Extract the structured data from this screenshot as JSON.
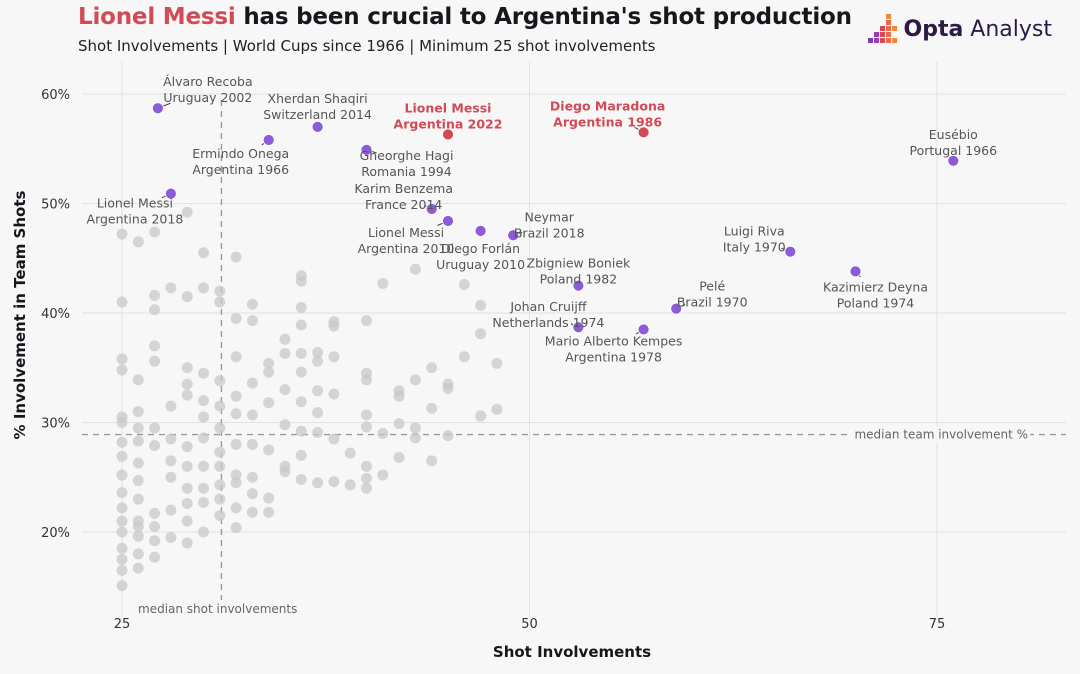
{
  "header": {
    "title_highlight": "Lionel Messi",
    "title_rest": " has been crucial to Argentina's shot production",
    "subtitle": "Shot Involvements | World Cups since 1966 | Minimum 25 shot involvements"
  },
  "brand": {
    "name_bold": "Opta",
    "name_rest": " Analyst"
  },
  "colors": {
    "highlight": "#d24a55",
    "labelled": "#8c5cd8",
    "background_points": "#c8c8c8",
    "brand": "#2b1a44"
  },
  "chart_data": {
    "type": "scatter",
    "xlabel": "Shot Involvements",
    "ylabel": "% Involvement in Team Shots",
    "xlim": [
      25,
      83
    ],
    "ylim": [
      13.5,
      63
    ],
    "xticks": [
      25,
      50,
      75
    ],
    "yticks": [
      20,
      30,
      40,
      50,
      60
    ],
    "ytick_labels": [
      "20%",
      "30%",
      "40%",
      "50%",
      "60%"
    ],
    "grid": true,
    "reference_lines": [
      {
        "axis": "y",
        "value": 28.9,
        "label": "median team involvement %"
      },
      {
        "axis": "x",
        "value": 31.1,
        "label": "median shot involvements"
      }
    ],
    "labelled_points": [
      {
        "name": "Álvaro Recoba",
        "team": "Uruguay 2002",
        "x": 27.2,
        "y": 58.7,
        "highlight": false
      },
      {
        "name": "Xherdan Shaqiri",
        "team": "Switzerland 2014",
        "x": 37.0,
        "y": 57.0,
        "highlight": false
      },
      {
        "name": "Lionel Messi",
        "team": "Argentina 2022",
        "x": 45.0,
        "y": 56.3,
        "highlight": true
      },
      {
        "name": "Diego Maradona",
        "team": "Argentina 1986",
        "x": 57.0,
        "y": 56.5,
        "highlight": true
      },
      {
        "name": "Ermindo Onega",
        "team": "Argentina 1966",
        "x": 34.0,
        "y": 55.8,
        "highlight": false
      },
      {
        "name": "Gheorghe Hagi",
        "team": "Romania 1994",
        "x": 40.0,
        "y": 54.9,
        "highlight": false
      },
      {
        "name": "Eusébio",
        "team": "Portugal 1966",
        "x": 76.0,
        "y": 53.9,
        "highlight": false
      },
      {
        "name": "Lionel Messi",
        "team": "Argentina 2018",
        "x": 28.0,
        "y": 50.9,
        "highlight": false
      },
      {
        "name": "Karim Benzema",
        "team": "France 2014",
        "x": 44.0,
        "y": 49.5,
        "highlight": false
      },
      {
        "name": "Lionel Messi",
        "team": "Argentina 2010",
        "x": 45.0,
        "y": 48.4,
        "highlight": false
      },
      {
        "name": "Diego Forlán",
        "team": "Uruguay 2010",
        "x": 47.0,
        "y": 47.5,
        "highlight": false
      },
      {
        "name": "Neymar",
        "team": "Brazil 2018",
        "x": 49.0,
        "y": 47.1,
        "highlight": false
      },
      {
        "name": "Luigi Riva",
        "team": "Italy 1970",
        "x": 66.0,
        "y": 45.6,
        "highlight": false
      },
      {
        "name": "Kazimierz Deyna",
        "team": "Poland 1974",
        "x": 70.0,
        "y": 43.8,
        "highlight": false
      },
      {
        "name": "Zbigniew Boniek",
        "team": "Poland 1982",
        "x": 53.0,
        "y": 42.5,
        "highlight": false
      },
      {
        "name": "Pelé",
        "team": "Brazil 1970",
        "x": 59.0,
        "y": 40.4,
        "highlight": false
      },
      {
        "name": "Johan Cruijff",
        "team": "Netherlands 1974",
        "x": 53.0,
        "y": 38.7,
        "highlight": false
      },
      {
        "name": "Mario Alberto Kempes",
        "team": "Argentina 1978",
        "x": 57.0,
        "y": 38.5,
        "highlight": false
      }
    ],
    "other_points": [
      [
        25,
        47.2
      ],
      [
        25,
        41.0
      ],
      [
        25,
        35.8
      ],
      [
        25,
        34.8
      ],
      [
        25,
        30.5
      ],
      [
        25,
        30.0
      ],
      [
        25,
        28.2
      ],
      [
        25,
        26.9
      ],
      [
        25,
        25.2
      ],
      [
        25,
        23.6
      ],
      [
        25,
        22.2
      ],
      [
        25,
        21.0
      ],
      [
        25,
        20.0
      ],
      [
        25,
        18.5
      ],
      [
        25,
        17.5
      ],
      [
        25,
        16.5
      ],
      [
        25,
        15.1
      ],
      [
        26,
        46.5
      ],
      [
        26,
        33.9
      ],
      [
        26,
        31.0
      ],
      [
        26,
        29.5
      ],
      [
        26,
        28.3
      ],
      [
        26,
        26.3
      ],
      [
        26,
        24.7
      ],
      [
        26,
        23.0
      ],
      [
        26,
        21.0
      ],
      [
        26,
        20.5
      ],
      [
        26,
        19.6
      ],
      [
        26,
        18.0
      ],
      [
        26,
        16.7
      ],
      [
        27,
        47.4
      ],
      [
        27,
        41.6
      ],
      [
        27,
        40.3
      ],
      [
        27,
        37.0
      ],
      [
        27,
        35.6
      ],
      [
        27,
        29.5
      ],
      [
        27,
        27.9
      ],
      [
        27,
        21.7
      ],
      [
        27,
        20.5
      ],
      [
        27,
        19.2
      ],
      [
        27,
        17.7
      ],
      [
        28,
        42.3
      ],
      [
        28,
        31.5
      ],
      [
        28,
        28.5
      ],
      [
        28,
        26.5
      ],
      [
        28,
        25.0
      ],
      [
        28,
        22.0
      ],
      [
        28,
        19.5
      ],
      [
        29,
        49.2
      ],
      [
        29,
        41.5
      ],
      [
        29,
        35.0
      ],
      [
        29,
        33.5
      ],
      [
        29,
        32.5
      ],
      [
        29,
        27.8
      ],
      [
        29,
        26.0
      ],
      [
        29,
        24.0
      ],
      [
        29,
        22.6
      ],
      [
        29,
        21.0
      ],
      [
        29,
        19.0
      ],
      [
        30,
        45.5
      ],
      [
        30,
        42.3
      ],
      [
        30,
        34.5
      ],
      [
        30,
        32.0
      ],
      [
        30,
        30.5
      ],
      [
        30,
        28.6
      ],
      [
        30,
        26.0
      ],
      [
        30,
        24.0
      ],
      [
        30,
        22.7
      ],
      [
        30,
        20.0
      ],
      [
        31,
        42.0
      ],
      [
        31,
        41.0
      ],
      [
        31,
        33.8
      ],
      [
        31,
        31.5
      ],
      [
        31,
        29.5
      ],
      [
        31,
        27.3
      ],
      [
        31,
        26.0
      ],
      [
        31,
        24.3
      ],
      [
        31,
        23.0
      ],
      [
        31,
        21.5
      ],
      [
        32,
        45.1
      ],
      [
        32,
        39.5
      ],
      [
        32,
        36.0
      ],
      [
        32,
        32.4
      ],
      [
        32,
        30.8
      ],
      [
        32,
        28.0
      ],
      [
        32,
        25.2
      ],
      [
        32,
        24.5
      ],
      [
        32,
        22.2
      ],
      [
        32,
        20.4
      ],
      [
        33,
        40.8
      ],
      [
        33,
        39.3
      ],
      [
        33,
        33.6
      ],
      [
        33,
        30.7
      ],
      [
        33,
        28.0
      ],
      [
        33,
        25.0
      ],
      [
        33,
        23.5
      ],
      [
        33,
        21.8
      ],
      [
        34,
        35.4
      ],
      [
        34,
        34.6
      ],
      [
        34,
        31.8
      ],
      [
        34,
        27.5
      ],
      [
        34,
        23.1
      ],
      [
        34,
        21.8
      ],
      [
        35,
        37.6
      ],
      [
        35,
        36.3
      ],
      [
        35,
        33.0
      ],
      [
        35,
        29.8
      ],
      [
        35,
        26.0
      ],
      [
        35,
        25.5
      ],
      [
        36,
        43.4
      ],
      [
        36,
        42.9
      ],
      [
        36,
        40.5
      ],
      [
        36,
        38.9
      ],
      [
        36,
        36.3
      ],
      [
        36,
        34.6
      ],
      [
        36,
        31.9
      ],
      [
        36,
        29.2
      ],
      [
        36,
        27.0
      ],
      [
        36,
        24.8
      ],
      [
        37,
        36.4
      ],
      [
        37,
        35.6
      ],
      [
        37,
        32.9
      ],
      [
        37,
        30.9
      ],
      [
        37,
        29.1
      ],
      [
        37,
        24.5
      ],
      [
        38,
        39.2
      ],
      [
        38,
        38.8
      ],
      [
        38,
        36.0
      ],
      [
        38,
        32.6
      ],
      [
        38,
        28.5
      ],
      [
        38,
        24.6
      ],
      [
        39,
        27.2
      ],
      [
        39,
        24.3
      ],
      [
        40,
        39.3
      ],
      [
        40,
        34.5
      ],
      [
        40,
        33.9
      ],
      [
        40,
        30.7
      ],
      [
        40,
        29.6
      ],
      [
        40,
        26.0
      ],
      [
        40,
        24.9
      ],
      [
        40,
        24.0
      ],
      [
        41,
        42.7
      ],
      [
        41,
        29.0
      ],
      [
        41,
        25.2
      ],
      [
        42,
        32.9
      ],
      [
        42,
        32.4
      ],
      [
        42,
        29.9
      ],
      [
        42,
        26.8
      ],
      [
        43,
        44.0
      ],
      [
        43,
        33.9
      ],
      [
        43,
        29.5
      ],
      [
        43,
        28.6
      ],
      [
        44,
        35.0
      ],
      [
        44,
        31.3
      ],
      [
        44,
        26.5
      ],
      [
        45,
        33.5
      ],
      [
        45,
        33.1
      ],
      [
        45,
        28.8
      ],
      [
        46,
        42.6
      ],
      [
        46,
        36.0
      ],
      [
        47,
        40.7
      ],
      [
        47,
        38.1
      ],
      [
        47,
        30.6
      ],
      [
        48,
        35.4
      ],
      [
        48,
        31.2
      ]
    ]
  }
}
